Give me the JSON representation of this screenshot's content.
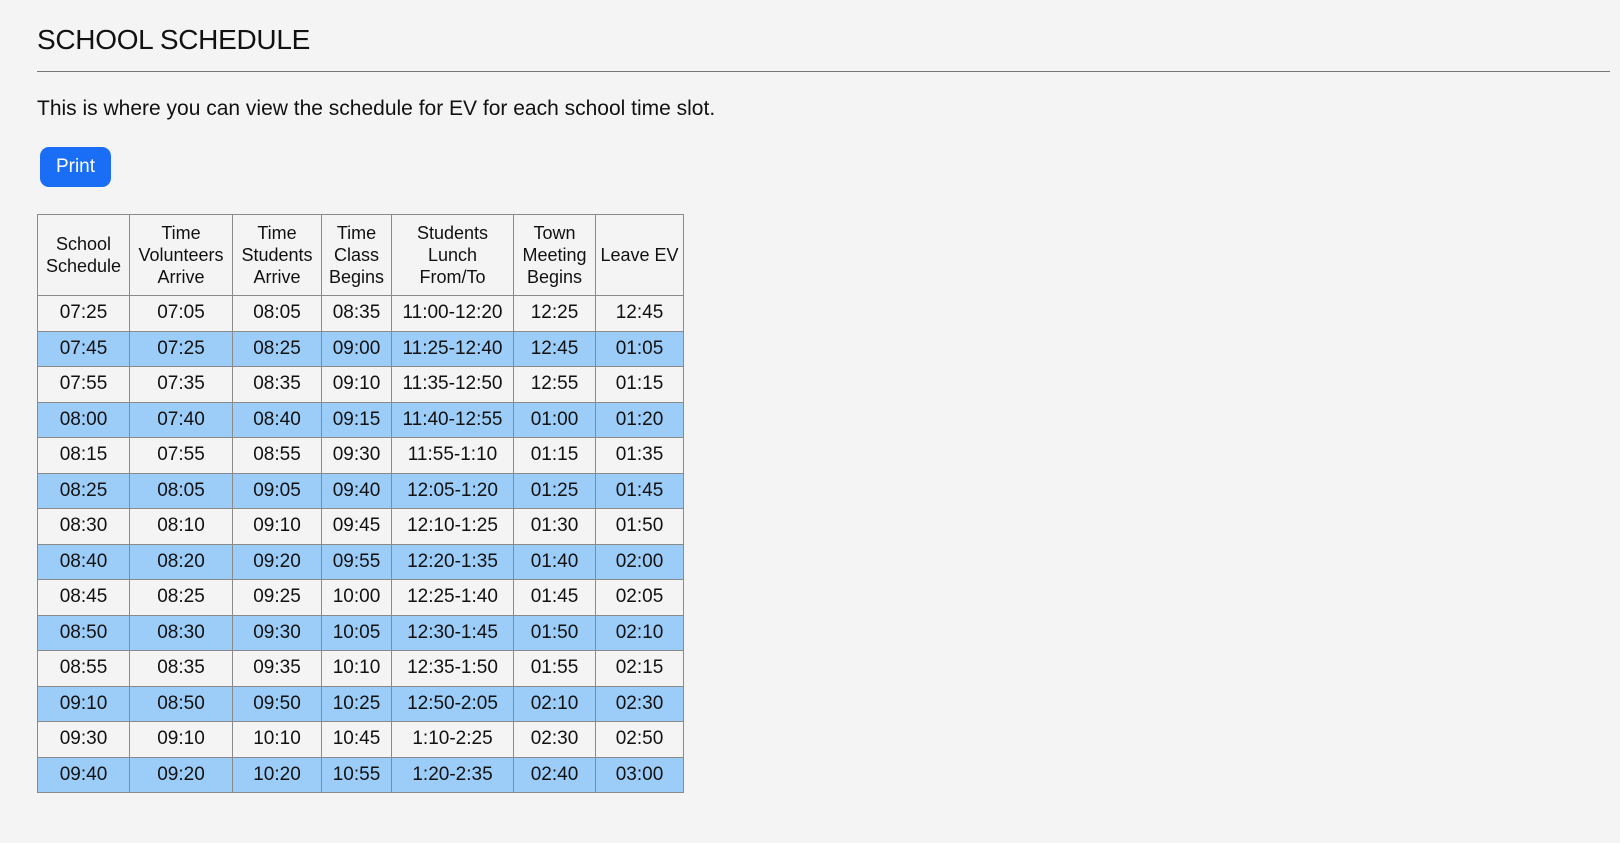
{
  "page": {
    "title": "SCHOOL SCHEDULE",
    "description": "This is where you can view the schedule for EV for each school time slot.",
    "print_label": "Print"
  },
  "colors": {
    "button": "#1a6ef5",
    "alt_row": "#9ccdf9",
    "background": "#f4f4f4"
  },
  "table": {
    "headers": [
      [
        "School",
        "Schedule"
      ],
      [
        "Time",
        "Volunteers",
        "Arrive"
      ],
      [
        "Time",
        "Students",
        "Arrive"
      ],
      [
        "Time",
        "Class",
        "Begins"
      ],
      [
        "Students",
        "Lunch",
        "From/To"
      ],
      [
        "Town",
        "Meeting",
        "Begins"
      ],
      [
        "Leave EV"
      ]
    ],
    "rows": [
      [
        "07:25",
        "07:05",
        "08:05",
        "08:35",
        "11:00-12:20",
        "12:25",
        "12:45"
      ],
      [
        "07:45",
        "07:25",
        "08:25",
        "09:00",
        "11:25-12:40",
        "12:45",
        "01:05"
      ],
      [
        "07:55",
        "07:35",
        "08:35",
        "09:10",
        "11:35-12:50",
        "12:55",
        "01:15"
      ],
      [
        "08:00",
        "07:40",
        "08:40",
        "09:15",
        "11:40-12:55",
        "01:00",
        "01:20"
      ],
      [
        "08:15",
        "07:55",
        "08:55",
        "09:30",
        "11:55-1:10",
        "01:15",
        "01:35"
      ],
      [
        "08:25",
        "08:05",
        "09:05",
        "09:40",
        "12:05-1:20",
        "01:25",
        "01:45"
      ],
      [
        "08:30",
        "08:10",
        "09:10",
        "09:45",
        "12:10-1:25",
        "01:30",
        "01:50"
      ],
      [
        "08:40",
        "08:20",
        "09:20",
        "09:55",
        "12:20-1:35",
        "01:40",
        "02:00"
      ],
      [
        "08:45",
        "08:25",
        "09:25",
        "10:00",
        "12:25-1:40",
        "01:45",
        "02:05"
      ],
      [
        "08:50",
        "08:30",
        "09:30",
        "10:05",
        "12:30-1:45",
        "01:50",
        "02:10"
      ],
      [
        "08:55",
        "08:35",
        "09:35",
        "10:10",
        "12:35-1:50",
        "01:55",
        "02:15"
      ],
      [
        "09:10",
        "08:50",
        "09:50",
        "10:25",
        "12:50-2:05",
        "02:10",
        "02:30"
      ],
      [
        "09:30",
        "09:10",
        "10:10",
        "10:45",
        "1:10-2:25",
        "02:30",
        "02:50"
      ],
      [
        "09:40",
        "09:20",
        "10:20",
        "10:55",
        "1:20-2:35",
        "02:40",
        "03:00"
      ]
    ]
  }
}
